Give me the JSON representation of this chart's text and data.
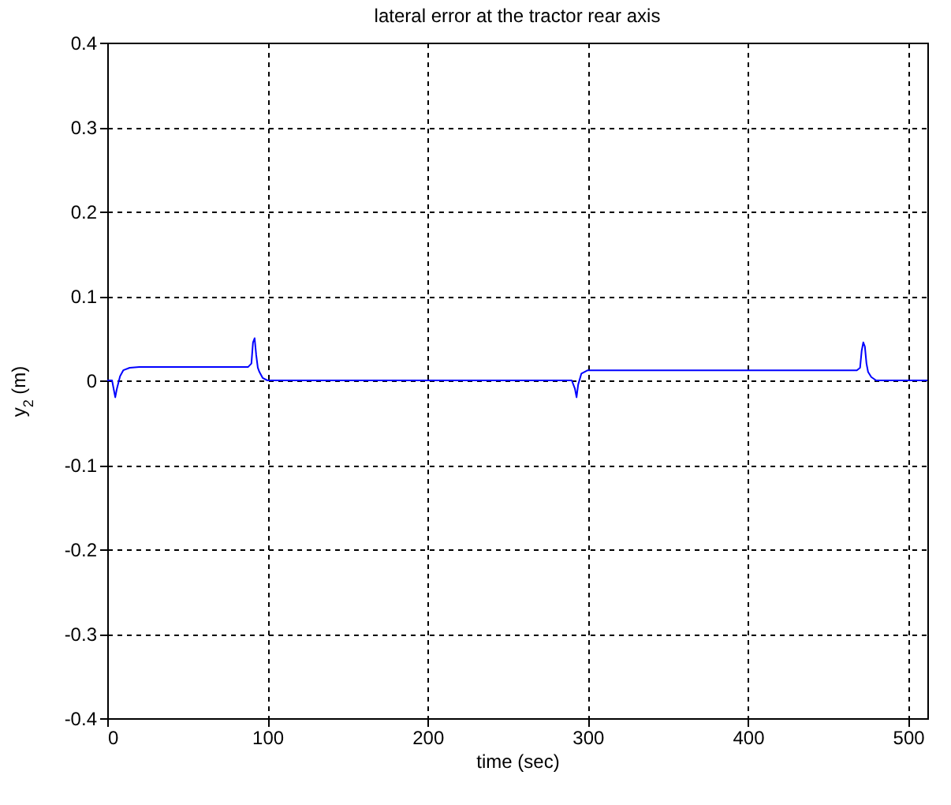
{
  "chart_data": {
    "type": "line",
    "title": "lateral error at the tractor rear axis",
    "xlabel": "time (sec)",
    "ylabel": "y$_{2}$ (m)",
    "x": [
      0,
      3,
      4,
      5,
      6,
      8,
      10,
      14,
      20,
      40,
      60,
      80,
      88,
      90,
      91,
      92,
      93,
      94,
      95,
      97,
      100,
      150,
      200,
      250,
      290,
      292,
      293,
      294,
      296,
      300,
      350,
      400,
      450,
      468,
      470,
      471,
      472,
      473,
      474,
      475,
      477,
      480,
      500,
      512
    ],
    "series": [
      {
        "color": "#0000ff",
        "values": [
          0,
          0,
          -0.01,
          -0.02,
          -0.01,
          0.005,
          0.012,
          0.015,
          0.016,
          0.016,
          0.016,
          0.016,
          0.016,
          0.02,
          0.045,
          0.05,
          0.03,
          0.015,
          0.01,
          0.003,
          0,
          0,
          0,
          0,
          0,
          -0.01,
          -0.02,
          -0.005,
          0.008,
          0.012,
          0.012,
          0.012,
          0.012,
          0.012,
          0.015,
          0.035,
          0.045,
          0.04,
          0.02,
          0.01,
          0.004,
          0,
          0,
          0
        ]
      }
    ],
    "xlim": [
      0,
      512
    ],
    "xticks": [
      0,
      100,
      200,
      300,
      400,
      500
    ],
    "ylim": [
      -0.4,
      0.4
    ],
    "yticks": [
      -0.4,
      -0.3,
      -0.2,
      -0.1,
      0,
      0.1,
      0.2,
      0.3,
      0.4
    ],
    "grid": true
  }
}
